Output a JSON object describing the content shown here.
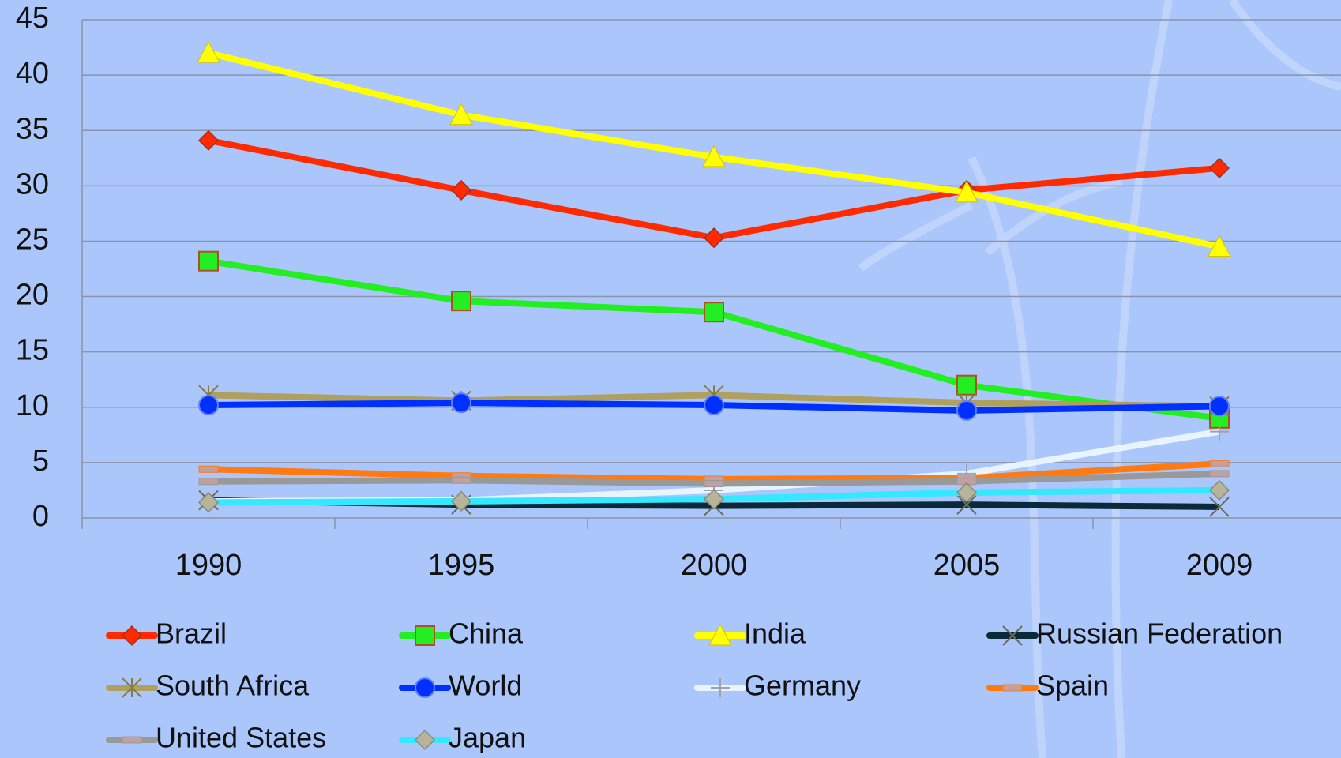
{
  "chart_data": {
    "type": "line",
    "categories": [
      "1990",
      "1995",
      "2000",
      "2005",
      "2009"
    ],
    "ylim": [
      0,
      45
    ],
    "yticks": [
      0,
      5,
      10,
      15,
      20,
      25,
      30,
      35,
      40,
      45
    ],
    "grid": true,
    "legend": "bottom",
    "series": [
      {
        "name": "Brazil",
        "color": "#ff2a00",
        "marker": "diamond",
        "values": [
          34.1,
          29.6,
          25.3,
          29.6,
          31.6
        ]
      },
      {
        "name": "China",
        "color": "#22ee22",
        "marker": "square",
        "values": [
          23.2,
          19.6,
          18.6,
          12.0,
          9.0
        ]
      },
      {
        "name": "India",
        "color": "#ffff00",
        "marker": "triangle",
        "values": [
          42.0,
          36.4,
          32.6,
          29.4,
          24.5
        ]
      },
      {
        "name": "Russian Federation",
        "color": "#0a2a3a",
        "marker": "x",
        "values": [
          1.6,
          1.2,
          1.1,
          1.2,
          1.0
        ]
      },
      {
        "name": "South Africa",
        "color": "#b0a060",
        "marker": "star",
        "values": [
          11.1,
          10.6,
          11.1,
          10.4,
          10.1
        ]
      },
      {
        "name": "World",
        "color": "#0030ff",
        "marker": "circle",
        "values": [
          10.2,
          10.4,
          10.2,
          9.7,
          10.1
        ]
      },
      {
        "name": "Germany",
        "color": "#e8f4ff",
        "marker": "plus",
        "values": [
          1.5,
          1.6,
          2.5,
          4.0,
          7.8
        ]
      },
      {
        "name": "Spain",
        "color": "#ff7a10",
        "marker": "dash",
        "values": [
          4.4,
          3.8,
          3.5,
          3.6,
          4.9
        ]
      },
      {
        "name": "United States",
        "color": "#999999",
        "marker": "dash",
        "values": [
          3.3,
          3.4,
          3.1,
          3.3,
          4.0
        ]
      },
      {
        "name": "Japan",
        "color": "#33e8ff",
        "marker": "diamond-gray",
        "values": [
          1.4,
          1.5,
          1.7,
          2.3,
          2.5
        ]
      }
    ]
  }
}
